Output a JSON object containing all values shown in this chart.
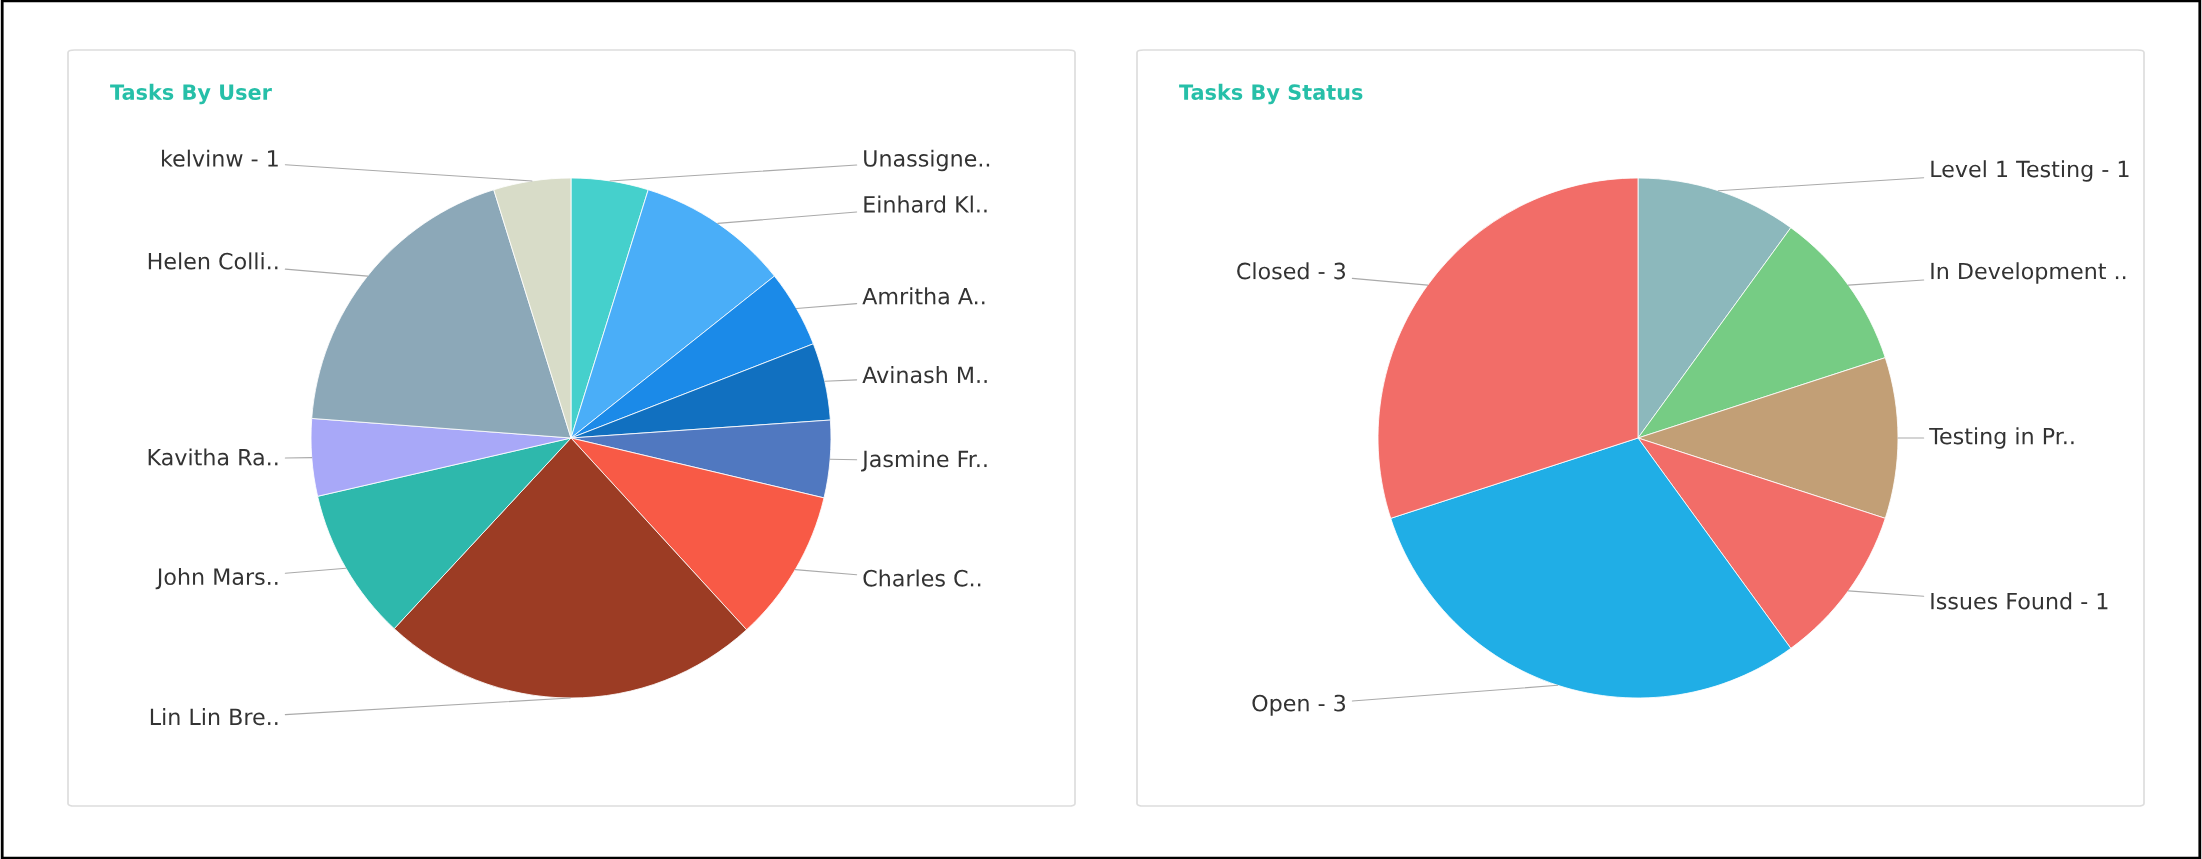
{
  "chart_data": [
    {
      "type": "pie",
      "title": "Tasks By User",
      "categories": [
        "Unassigne..",
        "Einhard Kl..",
        "Amritha A..",
        "Avinash M..",
        "Jasmine Fr..",
        "Charles C..",
        "Lin Lin Bre..",
        "John Mars..",
        "Kavitha Ra..",
        "Helen Colli..",
        "kelvinw - 1"
      ],
      "values": [
        4.8,
        9.5,
        4.8,
        4.8,
        4.8,
        9.5,
        23.7,
        9.5,
        4.8,
        19.0,
        4.8
      ],
      "colors": [
        "#45d0cc",
        "#4aaef8",
        "#1b8ae8",
        "#1170c0",
        "#5078c0",
        "#f85a46",
        "#9c3c24",
        "#2eb8ac",
        "#a8a8f8",
        "#8ca8b8",
        "#d8dcc8"
      ]
    },
    {
      "type": "pie",
      "title": "Tasks By Status",
      "categories": [
        "Level 1 Testing - 1",
        "In Development ..",
        "Testing in Pr..",
        "Issues Found - 1",
        "Open - 3",
        "Closed - 3"
      ],
      "values": [
        1,
        1,
        1,
        1,
        3,
        3
      ],
      "colors": [
        "#8cb8bc",
        "#76cc84",
        "#c29f76",
        "#f26d68",
        "#20aee6",
        "#f26d68"
      ]
    }
  ]
}
